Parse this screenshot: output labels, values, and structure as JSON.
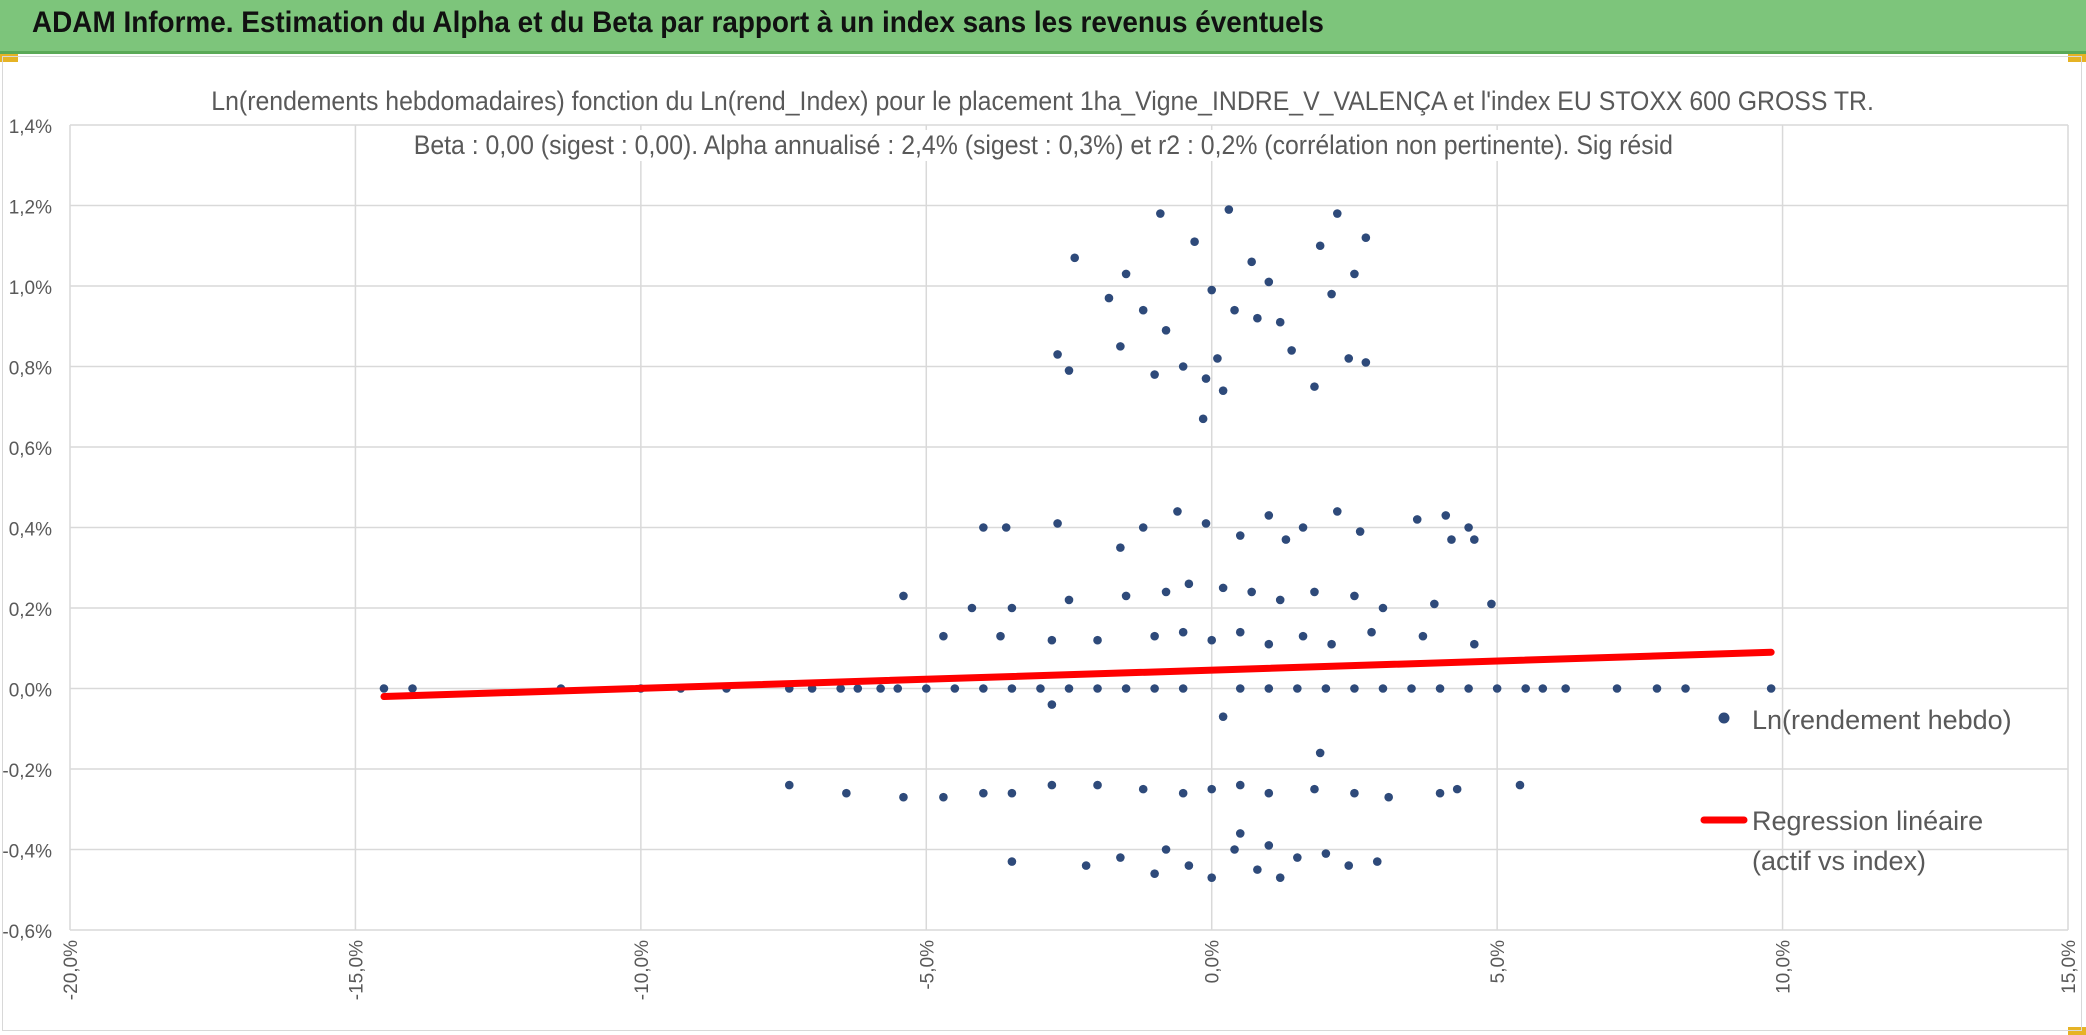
{
  "header": {
    "title": "ADAM Informe. Estimation du Alpha et du Beta par rapport à un index sans les revenus éventuels",
    "bg_color": "#7dc57b",
    "corner_color": "#e6b325"
  },
  "chart_data": {
    "type": "scatter",
    "title": "Ln(rendements hebdomadaires) fonction du Ln(rend_Index) pour le placement 1ha_Vigne_INDRE_V_VALENÇA et l'index EU STOXX 600 GROSS TR.",
    "subtitle": "Beta : 0,00 (sigest : 0,00). Alpha annualisé : 2,4% (sigest : 0,3%) et r2 : 0,2% (corrélation non pertinente). Sig résid",
    "xlim": [
      -0.2,
      0.15
    ],
    "ylim": [
      -0.006,
      0.014
    ],
    "xticks": [
      -0.2,
      -0.15,
      -0.1,
      -0.05,
      0.0,
      0.05,
      0.1,
      0.15
    ],
    "yticks": [
      -0.006,
      -0.004,
      -0.002,
      0.0,
      0.002,
      0.004,
      0.006,
      0.008,
      0.01,
      0.012,
      0.014
    ],
    "xtick_labels": [
      "-20,0%",
      "-15,0%",
      "-10,0%",
      "-5,0%",
      "0,0%",
      "5,0%",
      "10,0%",
      "15,0%"
    ],
    "ytick_labels": [
      "-0,6%",
      "-0,4%",
      "-0,2%",
      "0,0%",
      "0,2%",
      "0,4%",
      "0,6%",
      "0,8%",
      "1,0%",
      "1,2%",
      "1,4%"
    ],
    "grid": true,
    "legend_position": "right",
    "series": [
      {
        "name": "Ln(rendement hebdo)",
        "kind": "points",
        "color": "#2e4a7a",
        "points": [
          [
            -0.145,
            0.0
          ],
          [
            -0.14,
            0.0
          ],
          [
            -0.114,
            0.0
          ],
          [
            -0.1,
            0.0
          ],
          [
            -0.093,
            0.0
          ],
          [
            -0.085,
            0.0
          ],
          [
            -0.074,
            0.0
          ],
          [
            -0.07,
            0.0
          ],
          [
            -0.065,
            0.0
          ],
          [
            -0.062,
            0.0
          ],
          [
            -0.058,
            0.0
          ],
          [
            -0.055,
            0.0
          ],
          [
            -0.05,
            0.0
          ],
          [
            -0.045,
            0.0
          ],
          [
            -0.04,
            0.0
          ],
          [
            -0.035,
            0.0
          ],
          [
            -0.03,
            0.0
          ],
          [
            -0.025,
            0.0
          ],
          [
            -0.02,
            0.0
          ],
          [
            -0.015,
            0.0
          ],
          [
            -0.01,
            0.0
          ],
          [
            -0.005,
            0.0
          ],
          [
            0.005,
            0.0
          ],
          [
            0.01,
            0.0
          ],
          [
            0.015,
            0.0
          ],
          [
            0.02,
            0.0
          ],
          [
            0.025,
            0.0
          ],
          [
            0.03,
            0.0
          ],
          [
            0.035,
            0.0
          ],
          [
            0.04,
            0.0
          ],
          [
            0.045,
            0.0
          ],
          [
            0.05,
            0.0
          ],
          [
            0.055,
            0.0
          ],
          [
            0.058,
            0.0
          ],
          [
            0.062,
            0.0
          ],
          [
            0.071,
            0.0
          ],
          [
            0.078,
            0.0
          ],
          [
            0.083,
            0.0
          ],
          [
            0.098,
            0.0
          ],
          [
            -0.054,
            0.0023
          ],
          [
            -0.042,
            0.002
          ],
          [
            -0.035,
            0.002
          ],
          [
            -0.025,
            0.0022
          ],
          [
            -0.015,
            0.0023
          ],
          [
            -0.008,
            0.0024
          ],
          [
            -0.004,
            0.0026
          ],
          [
            0.002,
            0.0025
          ],
          [
            0.007,
            0.0024
          ],
          [
            0.012,
            0.0022
          ],
          [
            0.018,
            0.0024
          ],
          [
            0.025,
            0.0023
          ],
          [
            0.03,
            0.002
          ],
          [
            0.039,
            0.0021
          ],
          [
            0.049,
            0.0021
          ],
          [
            -0.047,
            0.0013
          ],
          [
            -0.037,
            0.0013
          ],
          [
            -0.028,
            0.0012
          ],
          [
            -0.02,
            0.0012
          ],
          [
            -0.01,
            0.0013
          ],
          [
            -0.005,
            0.0014
          ],
          [
            0.0,
            0.0012
          ],
          [
            0.005,
            0.0014
          ],
          [
            0.01,
            0.0011
          ],
          [
            0.016,
            0.0013
          ],
          [
            0.021,
            0.0011
          ],
          [
            0.028,
            0.0014
          ],
          [
            0.037,
            0.0013
          ],
          [
            0.046,
            0.0011
          ],
          [
            -0.04,
            0.004
          ],
          [
            -0.036,
            0.004
          ],
          [
            -0.027,
            0.0041
          ],
          [
            -0.016,
            0.0035
          ],
          [
            -0.012,
            0.004
          ],
          [
            -0.006,
            0.0044
          ],
          [
            -0.001,
            0.0041
          ],
          [
            0.005,
            0.0038
          ],
          [
            0.01,
            0.0043
          ],
          [
            0.013,
            0.0037
          ],
          [
            0.016,
            0.004
          ],
          [
            0.022,
            0.0044
          ],
          [
            0.026,
            0.0039
          ],
          [
            0.036,
            0.0042
          ],
          [
            0.041,
            0.0043
          ],
          [
            0.042,
            0.0037
          ],
          [
            0.045,
            0.004
          ],
          [
            0.046,
            0.0037
          ],
          [
            -0.027,
            0.0083
          ],
          [
            -0.025,
            0.0079
          ],
          [
            -0.024,
            0.0107
          ],
          [
            -0.018,
            0.0097
          ],
          [
            -0.016,
            0.0085
          ],
          [
            -0.015,
            0.0103
          ],
          [
            -0.012,
            0.0094
          ],
          [
            -0.01,
            0.0078
          ],
          [
            -0.009,
            0.0118
          ],
          [
            -0.008,
            0.0089
          ],
          [
            -0.005,
            0.008
          ],
          [
            -0.003,
            0.0111
          ],
          [
            -0.001,
            0.0077
          ],
          [
            0.0,
            0.0099
          ],
          [
            0.001,
            0.0082
          ],
          [
            0.002,
            0.0074
          ],
          [
            0.003,
            0.0119
          ],
          [
            0.004,
            0.0094
          ],
          [
            0.007,
            0.0106
          ],
          [
            0.008,
            0.0092
          ],
          [
            0.01,
            0.0101
          ],
          [
            0.012,
            0.0091
          ],
          [
            0.014,
            0.0084
          ],
          [
            0.018,
            0.0075
          ],
          [
            0.019,
            0.011
          ],
          [
            0.021,
            0.0098
          ],
          [
            0.022,
            0.0118
          ],
          [
            0.024,
            0.0082
          ],
          [
            0.025,
            0.0103
          ],
          [
            0.027,
            0.0112
          ],
          [
            0.027,
            0.0081
          ],
          [
            -0.0015,
            0.0067
          ],
          [
            -0.074,
            -0.0024
          ],
          [
            -0.064,
            -0.0026
          ],
          [
            -0.054,
            -0.0027
          ],
          [
            -0.047,
            -0.0027
          ],
          [
            -0.04,
            -0.0026
          ],
          [
            -0.035,
            -0.0026
          ],
          [
            -0.028,
            -0.0024
          ],
          [
            -0.02,
            -0.0024
          ],
          [
            -0.012,
            -0.0025
          ],
          [
            -0.005,
            -0.0026
          ],
          [
            0.0,
            -0.0025
          ],
          [
            0.005,
            -0.0024
          ],
          [
            0.01,
            -0.0026
          ],
          [
            0.018,
            -0.0025
          ],
          [
            0.025,
            -0.0026
          ],
          [
            0.031,
            -0.0027
          ],
          [
            0.04,
            -0.0026
          ],
          [
            0.043,
            -0.0025
          ],
          [
            0.054,
            -0.0024
          ],
          [
            -0.035,
            -0.0043
          ],
          [
            -0.022,
            -0.0044
          ],
          [
            -0.016,
            -0.0042
          ],
          [
            -0.01,
            -0.0046
          ],
          [
            -0.008,
            -0.004
          ],
          [
            -0.004,
            -0.0044
          ],
          [
            0.0,
            -0.0047
          ],
          [
            0.004,
            -0.004
          ],
          [
            0.005,
            -0.0036
          ],
          [
            0.008,
            -0.0045
          ],
          [
            0.01,
            -0.0039
          ],
          [
            0.012,
            -0.0047
          ],
          [
            0.015,
            -0.0042
          ],
          [
            0.02,
            -0.0041
          ],
          [
            0.024,
            -0.0044
          ],
          [
            0.029,
            -0.0043
          ],
          [
            0.019,
            -0.0016
          ],
          [
            0.002,
            -0.0007
          ],
          [
            -0.028,
            -0.0004
          ]
        ]
      },
      {
        "name": "Regression linéaire (actif vs index)",
        "kind": "line",
        "color": "#ff0000",
        "points": [
          [
            -0.145,
            -0.0002
          ],
          [
            0.098,
            0.0009
          ]
        ]
      }
    ]
  }
}
